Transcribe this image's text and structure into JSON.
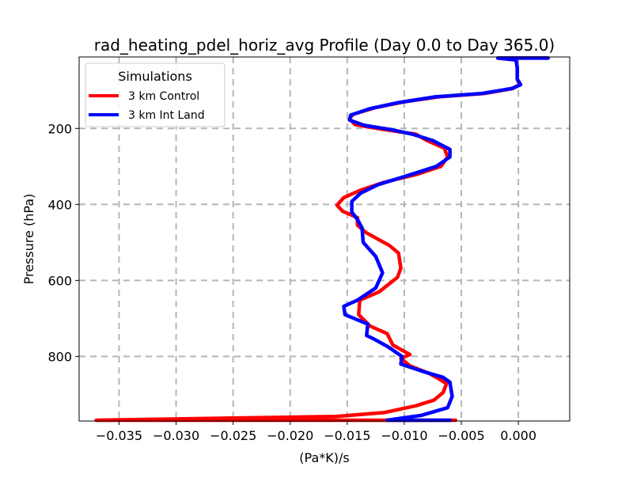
{
  "chart_data": {
    "type": "line",
    "title": "rad_heating_pdel_horiz_avg Profile (Day 0.0 to Day 365.0)",
    "xlabel": "(Pa*K)/s",
    "ylabel": "Pressure (hPa)",
    "xlim": [
      -0.0385,
      0.0045
    ],
    "ylim": [
      970,
      12
    ],
    "y_inverted": true,
    "grid": true,
    "x_ticks": [
      {
        "value": -0.035,
        "label": "−0.035"
      },
      {
        "value": -0.03,
        "label": "−0.030"
      },
      {
        "value": -0.025,
        "label": "−0.025"
      },
      {
        "value": -0.02,
        "label": "−0.020"
      },
      {
        "value": -0.015,
        "label": "−0.015"
      },
      {
        "value": -0.01,
        "label": "−0.010"
      },
      {
        "value": -0.005,
        "label": "−0.005"
      },
      {
        "value": 0.0,
        "label": "0.000"
      }
    ],
    "y_ticks": [
      {
        "value": 200,
        "label": "200"
      },
      {
        "value": 400,
        "label": "400"
      },
      {
        "value": 600,
        "label": "600"
      },
      {
        "value": 800,
        "label": "800"
      }
    ],
    "legend": {
      "title": "Simulations",
      "position": "top-left"
    },
    "series": [
      {
        "name": "3 km Control",
        "color": "#ff0000",
        "points": [
          [
            0.0026,
            15
          ],
          [
            -0.0018,
            15
          ],
          [
            -0.0002,
            20
          ],
          [
            -0.0001,
            40
          ],
          [
            -0.0001,
            70
          ],
          [
            0.0001,
            85
          ],
          [
            -0.0005,
            95
          ],
          [
            -0.003,
            108
          ],
          [
            -0.007,
            117
          ],
          [
            -0.01,
            130
          ],
          [
            -0.0125,
            145
          ],
          [
            -0.0145,
            163
          ],
          [
            -0.0148,
            175
          ],
          [
            -0.0143,
            190
          ],
          [
            -0.012,
            202
          ],
          [
            -0.009,
            215
          ],
          [
            -0.008,
            232
          ],
          [
            -0.0065,
            252
          ],
          [
            -0.0062,
            275
          ],
          [
            -0.0068,
            300
          ],
          [
            -0.0088,
            320
          ],
          [
            -0.0118,
            342
          ],
          [
            -0.0138,
            362
          ],
          [
            -0.0153,
            382
          ],
          [
            -0.0159,
            402
          ],
          [
            -0.0154,
            418
          ],
          [
            -0.0141,
            435
          ],
          [
            -0.0141,
            455
          ],
          [
            -0.0133,
            475
          ],
          [
            -0.0113,
            508
          ],
          [
            -0.0105,
            528
          ],
          [
            -0.0103,
            568
          ],
          [
            -0.0106,
            592
          ],
          [
            -0.0122,
            630
          ],
          [
            -0.0139,
            652
          ],
          [
            -0.014,
            690
          ],
          [
            -0.013,
            720
          ],
          [
            -0.0115,
            740
          ],
          [
            -0.011,
            770
          ],
          [
            -0.0095,
            795
          ],
          [
            -0.0103,
            805
          ],
          [
            -0.0095,
            825
          ],
          [
            -0.0078,
            845
          ],
          [
            -0.0069,
            860
          ],
          [
            -0.0063,
            872
          ],
          [
            -0.0066,
            895
          ],
          [
            -0.0074,
            915
          ],
          [
            -0.009,
            930
          ],
          [
            -0.0118,
            948
          ],
          [
            -0.016,
            958
          ],
          [
            -0.037,
            968
          ],
          [
            -0.0055,
            968
          ]
        ]
      },
      {
        "name": "3 km Int Land",
        "color": "#0000ff",
        "points": [
          [
            0.0026,
            15
          ],
          [
            -0.0018,
            15
          ],
          [
            -0.0002,
            20
          ],
          [
            -0.0001,
            40
          ],
          [
            -0.0001,
            70
          ],
          [
            0.0002,
            85
          ],
          [
            -0.0006,
            95
          ],
          [
            -0.0032,
            108
          ],
          [
            -0.0073,
            117
          ],
          [
            -0.0105,
            132
          ],
          [
            -0.013,
            148
          ],
          [
            -0.0147,
            165
          ],
          [
            -0.0148,
            178
          ],
          [
            -0.0135,
            192
          ],
          [
            -0.0112,
            203
          ],
          [
            -0.0093,
            215
          ],
          [
            -0.0075,
            232
          ],
          [
            -0.006,
            255
          ],
          [
            -0.006,
            275
          ],
          [
            -0.0072,
            300
          ],
          [
            -0.0098,
            325
          ],
          [
            -0.0123,
            348
          ],
          [
            -0.0138,
            370
          ],
          [
            -0.0146,
            392
          ],
          [
            -0.0146,
            420
          ],
          [
            -0.0141,
            440
          ],
          [
            -0.0137,
            462
          ],
          [
            -0.0136,
            500
          ],
          [
            -0.0125,
            537
          ],
          [
            -0.0119,
            580
          ],
          [
            -0.0125,
            620
          ],
          [
            -0.0141,
            652
          ],
          [
            -0.0153,
            668
          ],
          [
            -0.0152,
            690
          ],
          [
            -0.0132,
            715
          ],
          [
            -0.0133,
            745
          ],
          [
            -0.0128,
            752
          ],
          [
            -0.0114,
            775
          ],
          [
            -0.0102,
            800
          ],
          [
            -0.0103,
            820
          ],
          [
            -0.0083,
            840
          ],
          [
            -0.0066,
            855
          ],
          [
            -0.006,
            868
          ],
          [
            -0.0058,
            905
          ],
          [
            -0.0062,
            935
          ],
          [
            -0.0085,
            955
          ],
          [
            -0.0115,
            968
          ],
          [
            -0.006,
            968
          ]
        ]
      }
    ]
  }
}
